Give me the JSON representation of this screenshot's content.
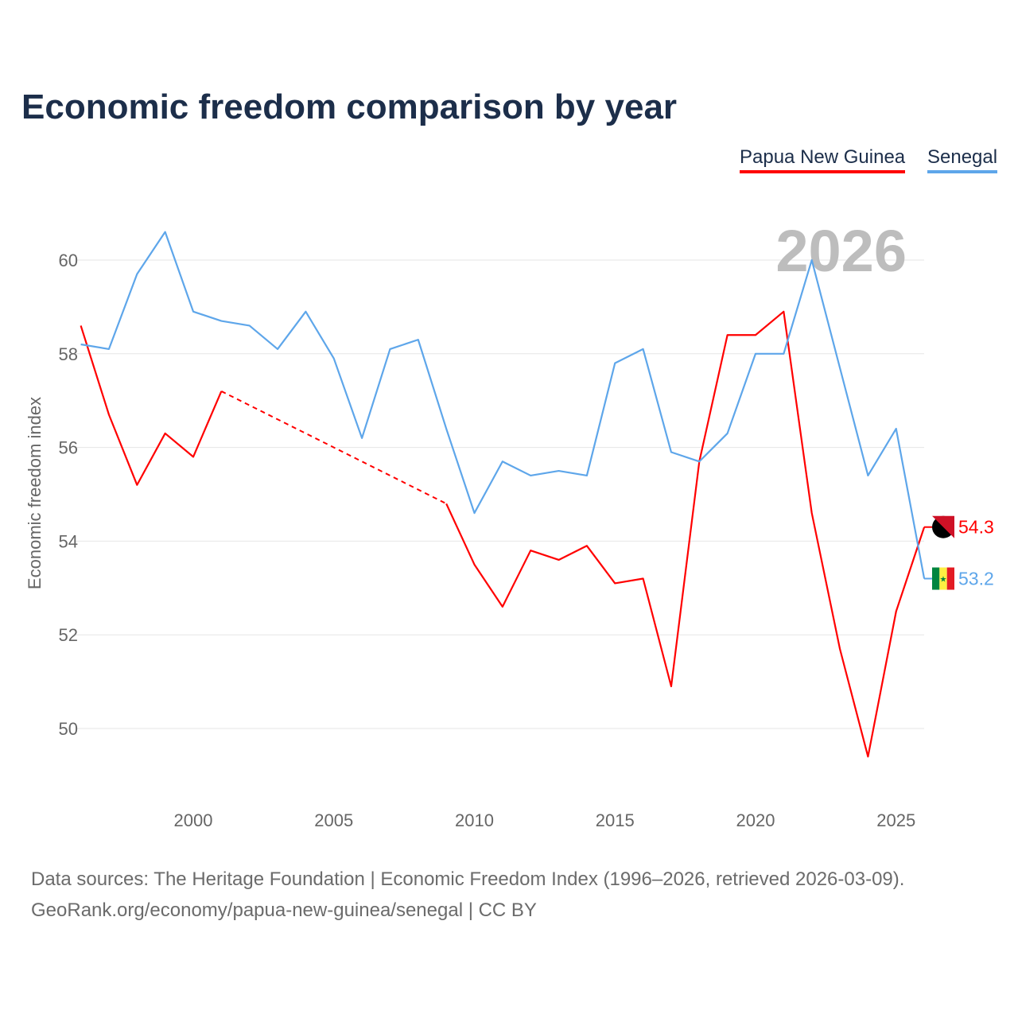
{
  "title": "Economic freedom comparison by year",
  "footer": {
    "line1": "Data sources: The Heritage Foundation | Economic Freedom Index (1996–2026, retrieved 2026-03-09).",
    "line2": "GeoRank.org/economy/papua-new-guinea/senegal | CC BY"
  },
  "chart_data": {
    "type": "line",
    "title": "Economic freedom comparison by year",
    "ylabel": "Economic freedom index",
    "xlabel": "",
    "watermark_year": "2026",
    "xlim": [
      1996,
      2026
    ],
    "ylim": [
      48.5,
      61.5
    ],
    "x_ticks": [
      2000,
      2005,
      2010,
      2015,
      2020,
      2025
    ],
    "y_ticks": [
      50,
      52,
      54,
      56,
      58,
      60
    ],
    "grid": true,
    "legend_position": "top-right",
    "x": [
      1996,
      1997,
      1998,
      1999,
      2000,
      2001,
      2002,
      2003,
      2004,
      2005,
      2006,
      2007,
      2008,
      2009,
      2010,
      2011,
      2012,
      2013,
      2014,
      2015,
      2016,
      2017,
      2018,
      2019,
      2020,
      2021,
      2022,
      2023,
      2024,
      2025,
      2026
    ],
    "series": [
      {
        "name": "Papua New Guinea",
        "color": "#ff0000",
        "end_label": "54.3",
        "values": [
          58.6,
          56.7,
          55.2,
          56.3,
          55.8,
          57.2,
          null,
          null,
          null,
          null,
          null,
          null,
          null,
          54.8,
          53.5,
          52.6,
          53.8,
          53.6,
          53.9,
          53.1,
          53.2,
          50.9,
          55.7,
          58.4,
          58.4,
          58.9,
          54.6,
          51.7,
          49.4,
          52.5,
          54.3
        ]
      },
      {
        "name": "Senegal",
        "color": "#5ea6ea",
        "end_label": "53.2",
        "values": [
          58.2,
          58.1,
          59.7,
          60.6,
          58.9,
          58.7,
          58.6,
          58.1,
          58.9,
          57.9,
          56.2,
          58.1,
          58.3,
          56.4,
          54.6,
          55.7,
          55.4,
          55.5,
          55.4,
          57.8,
          58.1,
          55.9,
          55.7,
          56.3,
          58.0,
          58.0,
          60.0,
          57.7,
          55.4,
          56.4,
          53.2
        ]
      }
    ]
  }
}
